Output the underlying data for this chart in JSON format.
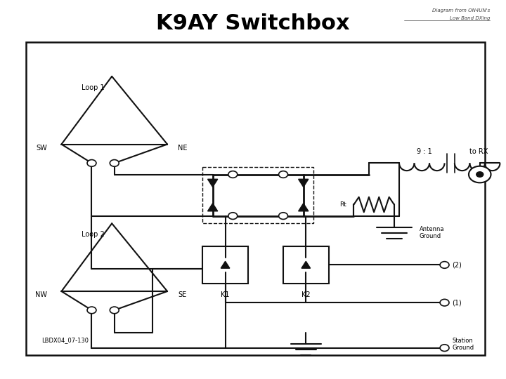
{
  "title": "K9AY Switchbox",
  "title_fontsize": 22,
  "title_fontweight": "bold",
  "attribution_line1": "Diagram from ON4UN's",
  "attribution_line2": "Low Band DXing",
  "bg_color": "#ffffff",
  "line_color": "#111111",
  "fig_width": 7.2,
  "fig_height": 5.4,
  "dpi": 100,
  "label_lbdx": "LBDX04_07-130"
}
